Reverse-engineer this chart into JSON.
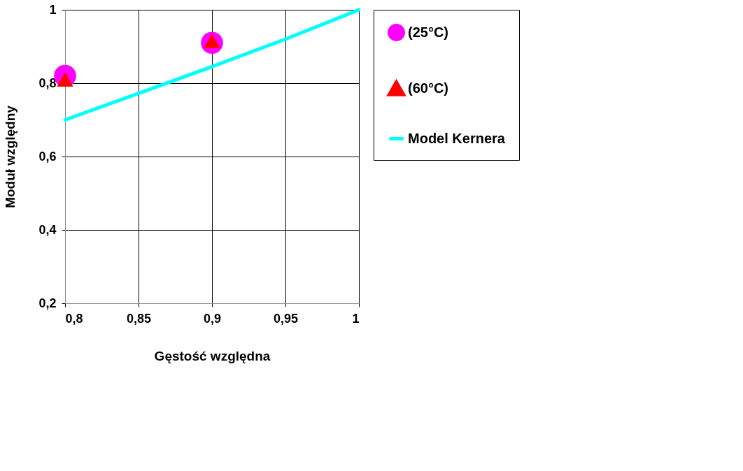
{
  "chart_data": {
    "type": "scatter",
    "xlabel": "Gęstość względna",
    "ylabel": "Moduł względny",
    "xlim": [
      0.8,
      1
    ],
    "ylim": [
      0.2,
      1
    ],
    "xticks": [
      {
        "value": 0.8,
        "label": "0,8"
      },
      {
        "value": 0.85,
        "label": "0,85"
      },
      {
        "value": 0.9,
        "label": "0,9"
      },
      {
        "value": 0.95,
        "label": "0,95"
      },
      1
    ],
    "yticks": [
      {
        "value": 0.2,
        "label": "0,2"
      },
      {
        "value": 0.4,
        "label": "0,4"
      },
      {
        "value": 0.6,
        "label": "0,6"
      },
      {
        "value": 0.8,
        "label": "0,8"
      },
      1
    ],
    "grid": true,
    "legend": "right",
    "series": [
      {
        "name": "(25°C)",
        "color": "#ff00ff",
        "marker": "circle",
        "x": [
          0.8,
          0.9
        ],
        "values": [
          0.82,
          0.91
        ]
      },
      {
        "name": "(60°C)",
        "color": "#ff0000",
        "marker": "triangle",
        "x": [
          0.8,
          0.9
        ],
        "values": [
          0.81,
          0.915
        ]
      },
      {
        "name": "Model Kernera",
        "type": "line",
        "color": "#00ffff",
        "marker": "none",
        "x": [
          0.8,
          0.85,
          0.9,
          0.95,
          1
        ],
        "values": [
          0.7,
          0.772,
          0.845,
          0.92,
          1
        ]
      }
    ]
  }
}
